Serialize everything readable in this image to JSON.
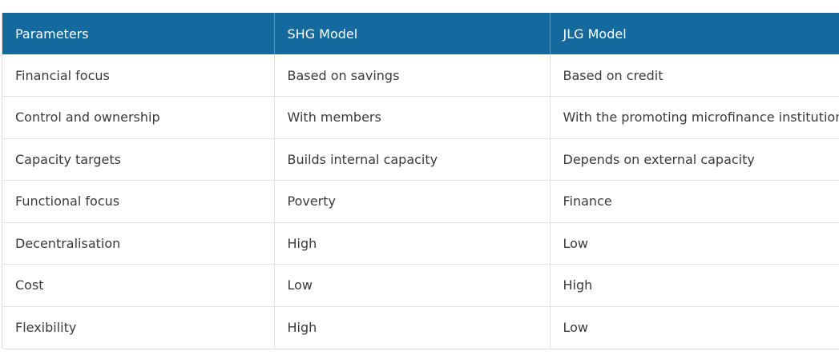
{
  "table": {
    "headers": [
      "Parameters",
      "SHG Model",
      "JLG Model"
    ],
    "rows": [
      [
        "Financial focus",
        "Based on savings",
        "Based on credit"
      ],
      [
        "Control and ownership",
        "With members",
        "With the promoting microfinance institution"
      ],
      [
        "Capacity targets",
        "Builds internal capacity",
        "Depends on external capacity"
      ],
      [
        "Functional focus",
        "Poverty",
        "Finance"
      ],
      [
        "Decentralisation",
        "High",
        "Low"
      ],
      [
        "Cost",
        "Low",
        "High"
      ],
      [
        "Flexibility",
        "High",
        "Low"
      ]
    ]
  },
  "colors": {
    "header_bg": "#146a9e",
    "header_text": "#ffffff",
    "body_text": "#3a3a3a",
    "grid_line": "#e2e2e2"
  }
}
